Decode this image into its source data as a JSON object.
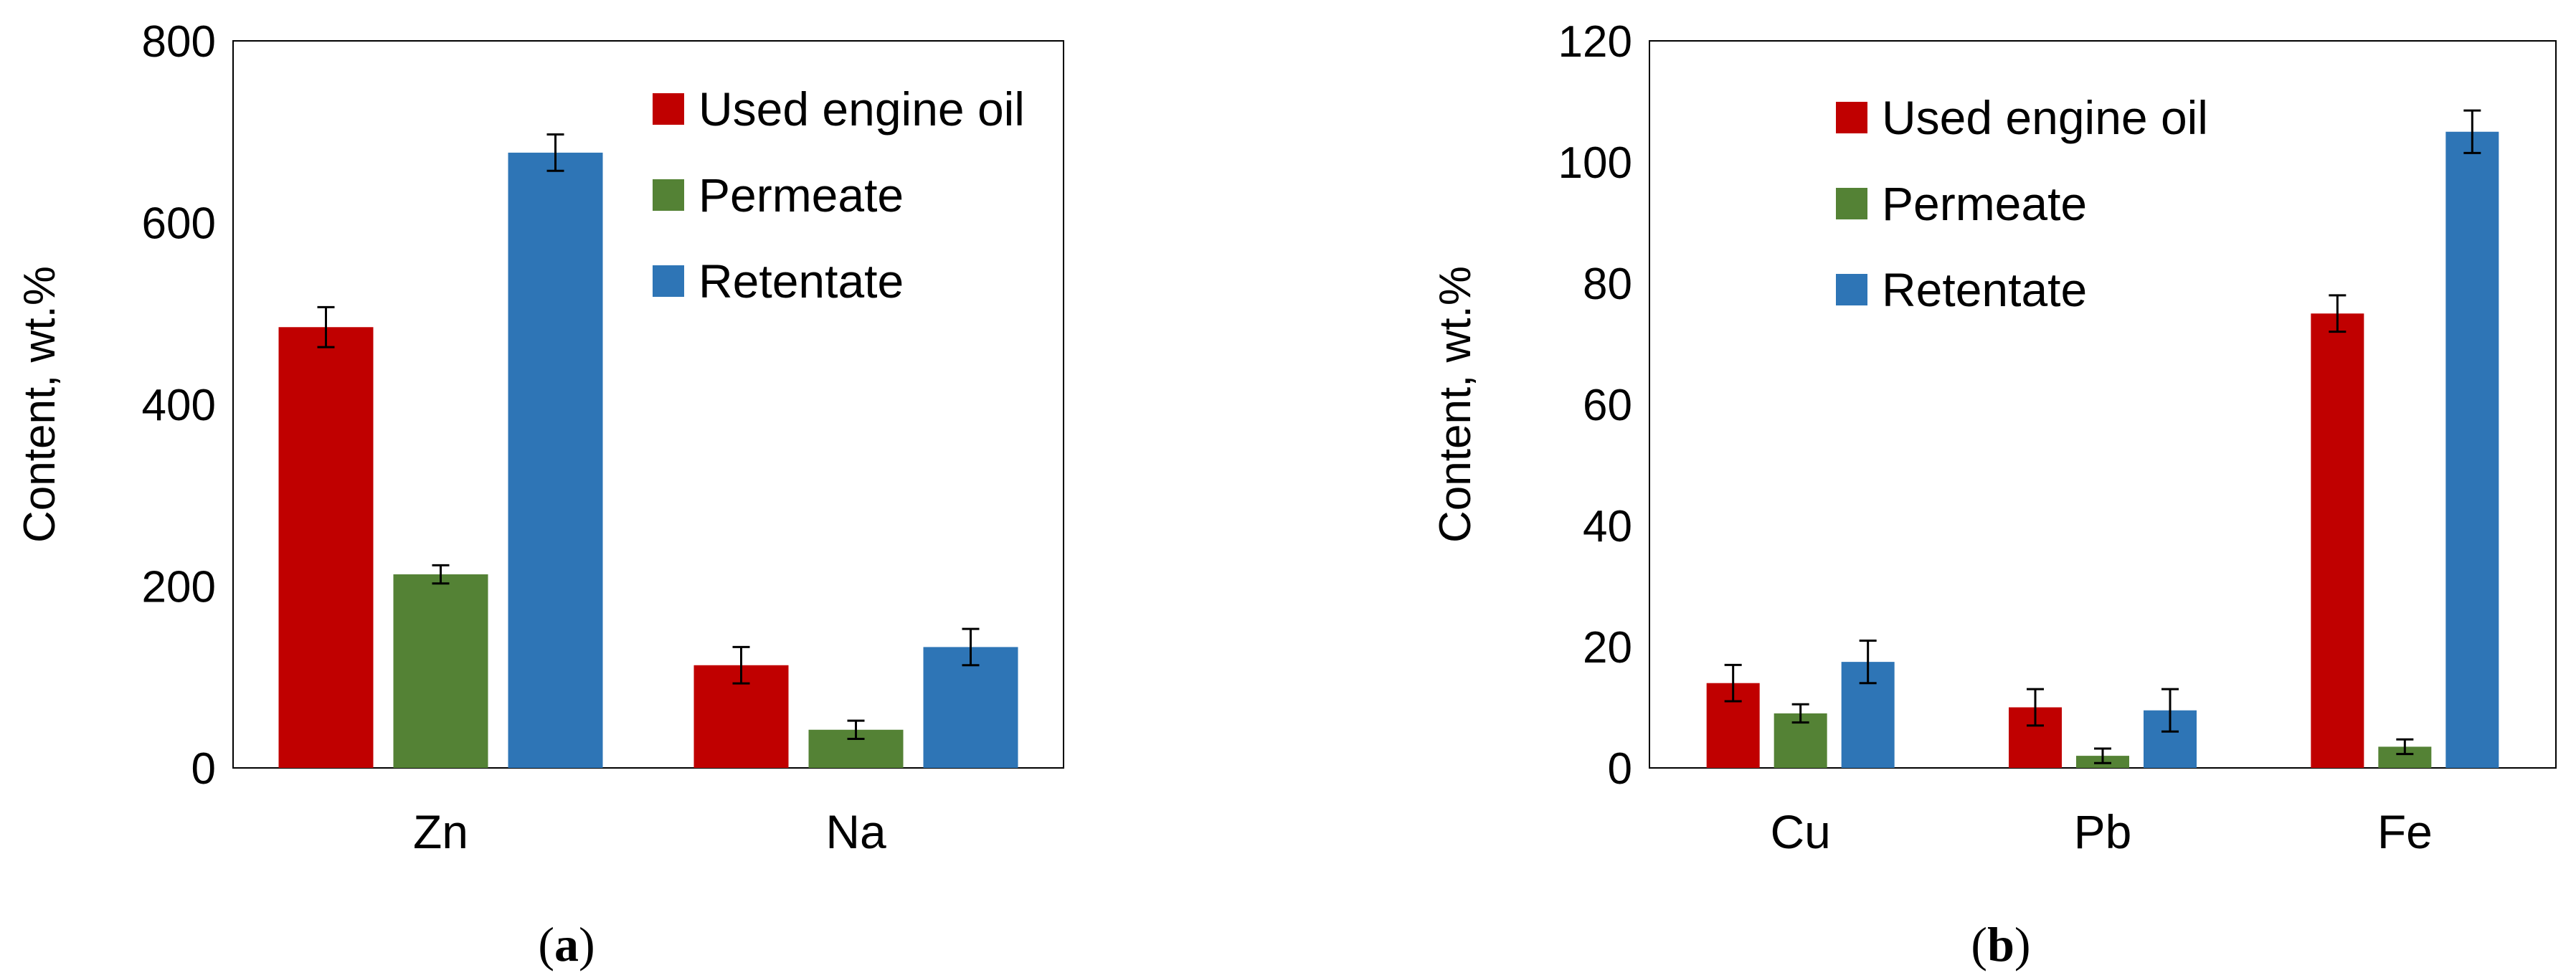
{
  "chart_data": [
    {
      "type": "bar",
      "panel_label": {
        "open": "(",
        "letter": "a",
        "close": ")"
      },
      "ylabel": "Content,  wt.%",
      "xlabel": "",
      "ylim": [
        0,
        800
      ],
      "yticks": [
        0,
        200,
        400,
        600,
        800
      ],
      "categories": [
        "Zn",
        "Na"
      ],
      "series": [
        {
          "name": "Used engine oil",
          "color": "#c00000",
          "values": [
            485,
            113
          ],
          "errors": [
            22,
            20
          ]
        },
        {
          "name": "Permeate",
          "color": "#548235",
          "values": [
            213,
            42
          ],
          "errors": [
            10,
            10
          ]
        },
        {
          "name": "Retentate",
          "color": "#2e75b6",
          "values": [
            677,
            133
          ],
          "errors": [
            20,
            20
          ]
        }
      ],
      "legend_position": "top-right",
      "grid": false
    },
    {
      "type": "bar",
      "panel_label": {
        "open": "(",
        "letter": "b",
        "close": ")"
      },
      "ylabel": "Content,  wt.%",
      "xlabel": "",
      "ylim": [
        0,
        120
      ],
      "yticks": [
        0,
        20,
        40,
        60,
        80,
        100,
        120
      ],
      "categories": [
        "Cu",
        "Pb",
        "Fe"
      ],
      "series": [
        {
          "name": "Used engine oil",
          "color": "#c00000",
          "values": [
            14,
            10,
            75
          ],
          "errors": [
            3,
            3,
            3
          ]
        },
        {
          "name": "Permeate",
          "color": "#548235",
          "values": [
            9,
            2,
            3.5
          ],
          "errors": [
            1.5,
            1.2,
            1.2
          ]
        },
        {
          "name": "Retentate",
          "color": "#2e75b6",
          "values": [
            17.5,
            9.5,
            105
          ],
          "errors": [
            3.5,
            3.5,
            3.5
          ]
        }
      ],
      "legend_position": "top-right",
      "grid": false
    }
  ]
}
